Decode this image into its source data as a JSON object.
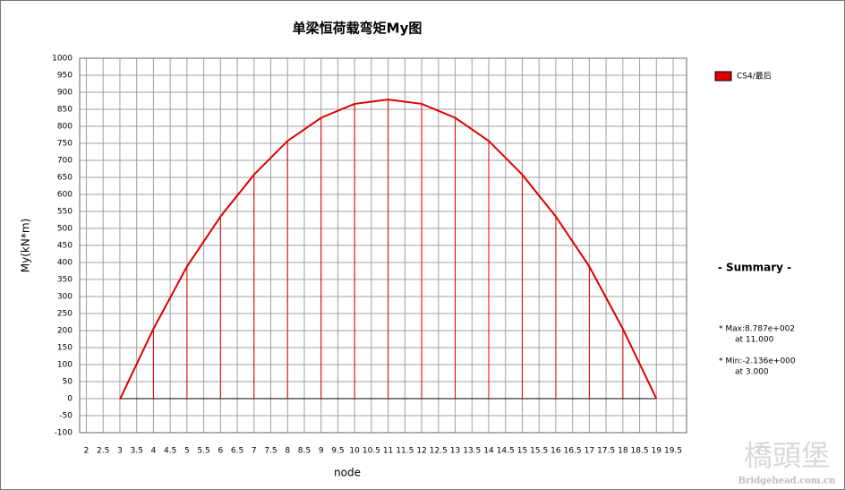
{
  "chart_data": {
    "type": "line",
    "title": "单梁恒荷载弯矩My图",
    "x_label": "node",
    "y_label": "My(kN*m)",
    "x": [
      3,
      4,
      5,
      6,
      7,
      8,
      9,
      10,
      11,
      12,
      13,
      14,
      15,
      16,
      17,
      18,
      19
    ],
    "series": [
      {
        "name": "CS4/最后",
        "color": "#dd0000",
        "values": [
          -2.136,
          205,
          388,
          535,
          658,
          757,
          825,
          866,
          878.7,
          866,
          825,
          757,
          658,
          535,
          388,
          205,
          0
        ]
      }
    ],
    "xlim": [
      1.8,
      19.9
    ],
    "ylim": [
      -100,
      1000
    ],
    "xticks": [
      2,
      2.5,
      3,
      3.5,
      4,
      4.5,
      5,
      5.5,
      6,
      6.5,
      7,
      7.5,
      8,
      8.5,
      9,
      9.5,
      10,
      10.5,
      11,
      11.5,
      12,
      12.5,
      13,
      13.5,
      14,
      14.5,
      15,
      15.5,
      16,
      16.5,
      17,
      17.5,
      18,
      18.5,
      19,
      19.5
    ],
    "yticks": [
      -100,
      -50,
      0,
      50,
      100,
      150,
      200,
      250,
      300,
      350,
      400,
      450,
      500,
      550,
      600,
      650,
      700,
      750,
      800,
      850,
      900,
      950,
      1000
    ],
    "grid": true,
    "summary": {
      "title": "- Summary -",
      "max": "* Max:8.787e+002",
      "max_at": "at 11.000",
      "min": "* Min:-2.136e+000",
      "min_at": "at  3.000"
    },
    "watermark": {
      "logo": "橋頭堡",
      "site": "Bridgehead.com.cn"
    }
  }
}
